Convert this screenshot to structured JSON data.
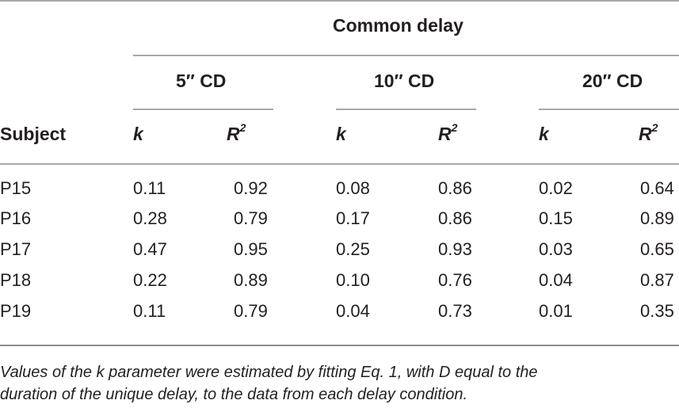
{
  "table": {
    "group_header": "Common delay",
    "subgroups": [
      "5″ CD",
      "10″ CD",
      "20″ CD"
    ],
    "column_headers": {
      "subject": "Subject",
      "k": "k",
      "r": "R",
      "r_sup": "2"
    },
    "rows": [
      {
        "subject": "P15",
        "values": [
          "0.11",
          "0.92",
          "0.08",
          "0.86",
          "0.02",
          "0.64"
        ]
      },
      {
        "subject": "P16",
        "values": [
          "0.28",
          "0.79",
          "0.17",
          "0.86",
          "0.15",
          "0.89"
        ]
      },
      {
        "subject": "P17",
        "values": [
          "0.47",
          "0.95",
          "0.25",
          "0.93",
          "0.03",
          "0.65"
        ]
      },
      {
        "subject": "P18",
        "values": [
          "0.22",
          "0.89",
          "0.10",
          "0.76",
          "0.04",
          "0.87"
        ]
      },
      {
        "subject": "P19",
        "values": [
          "0.11",
          "0.79",
          "0.04",
          "0.73",
          "0.01",
          "0.35"
        ]
      }
    ]
  },
  "footnote": {
    "line1": "Values of the k parameter were estimated by fitting Eq. 1, with D equal to the",
    "line2": "duration of the unique delay, to the data from each delay condition."
  }
}
